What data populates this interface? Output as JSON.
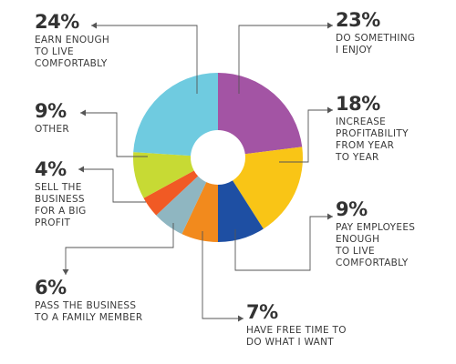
{
  "chart_data": {
    "type": "pie",
    "style": "donut",
    "slices": [
      {
        "label": "DO SOMETHING\nI ENJOY",
        "value": 23,
        "display": "23%",
        "color": "#a354a4"
      },
      {
        "label": "INCREASE\nPROFITABILITY\nFROM YEAR\nTO YEAR",
        "value": 18,
        "display": "18%",
        "color": "#f9c516"
      },
      {
        "label": "PAY EMPLOYEES\nENOUGH\nTO LIVE\nCOMFORTABLY",
        "value": 9,
        "display": "9%",
        "color": "#1e4fa3"
      },
      {
        "label": "HAVE FREE TIME TO\nDO WHAT I WANT",
        "value": 7,
        "display": "7%",
        "color": "#f28a1d"
      },
      {
        "label": "PASS THE BUSINESS\nTO A FAMILY MEMBER",
        "value": 6,
        "display": "6%",
        "color": "#8fb6c1"
      },
      {
        "label": "SELL THE\nBUSINESS\nFOR A BIG\nPROFIT",
        "value": 4,
        "display": "4%",
        "color": "#f15a24"
      },
      {
        "label": "OTHER",
        "value": 9,
        "display": "9%",
        "color": "#c7da34"
      },
      {
        "label": "EARN ENOUGH\nTO LIVE\nCOMFORTABLY",
        "value": 24,
        "display": "24%",
        "color": "#6fcbe0"
      }
    ]
  }
}
